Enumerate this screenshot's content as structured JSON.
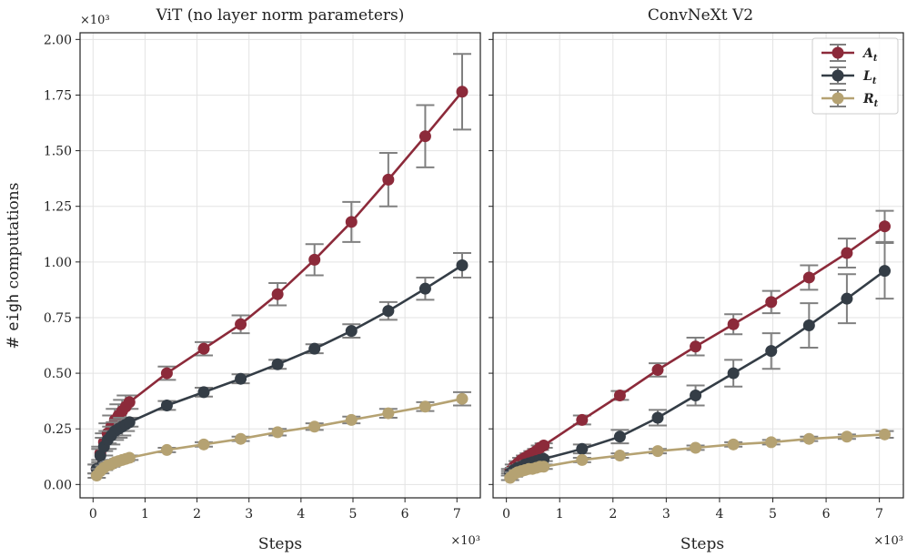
{
  "chart_data": [
    {
      "type": "line",
      "title": "ViT (no layer norm parameters)",
      "xlabel": "Steps",
      "ylabel_prefix": "# ",
      "ylabel_code": "eigh",
      "ylabel_suffix": " computations",
      "x_multiplier_label": "×10³",
      "y_multiplier_label": "×10³",
      "xlim": [
        -0.25,
        7.45
      ],
      "ylim": [
        -0.06,
        2.03
      ],
      "xticks": [
        0,
        1,
        2,
        3,
        4,
        5,
        6,
        7
      ],
      "yticks": [
        0.0,
        0.25,
        0.5,
        0.75,
        1.0,
        1.25,
        1.5,
        1.75,
        2.0
      ],
      "yticklabels": [
        "0.00",
        "0.25",
        "0.50",
        "0.75",
        "1.00",
        "1.25",
        "1.50",
        "1.75",
        "2.00"
      ],
      "grid": true,
      "series": [
        {
          "name": "A",
          "color": "#8c2a3a",
          "x": [
            0.07,
            0.14,
            0.21,
            0.28,
            0.35,
            0.42,
            0.49,
            0.56,
            0.63,
            0.7,
            1.42,
            2.13,
            2.84,
            3.55,
            4.26,
            4.97,
            5.68,
            6.39,
            7.1
          ],
          "y": [
            0.07,
            0.14,
            0.19,
            0.23,
            0.26,
            0.29,
            0.31,
            0.33,
            0.35,
            0.37,
            0.5,
            0.61,
            0.72,
            0.855,
            1.01,
            1.18,
            1.37,
            1.565,
            1.765
          ],
          "err": [
            0.02,
            0.03,
            0.04,
            0.045,
            0.05,
            0.05,
            0.05,
            0.05,
            0.05,
            0.03,
            0.03,
            0.03,
            0.04,
            0.05,
            0.07,
            0.09,
            0.12,
            0.14,
            0.17
          ]
        },
        {
          "name": "L",
          "color": "#343d46",
          "x": [
            0.07,
            0.14,
            0.21,
            0.28,
            0.35,
            0.42,
            0.49,
            0.56,
            0.63,
            0.7,
            1.42,
            2.13,
            2.84,
            3.55,
            4.26,
            4.97,
            5.68,
            6.39,
            7.1
          ],
          "y": [
            0.07,
            0.13,
            0.17,
            0.2,
            0.22,
            0.24,
            0.25,
            0.26,
            0.27,
            0.28,
            0.355,
            0.415,
            0.475,
            0.54,
            0.61,
            0.69,
            0.78,
            0.88,
            0.985
          ],
          "err": [
            0.02,
            0.03,
            0.04,
            0.04,
            0.04,
            0.04,
            0.04,
            0.04,
            0.03,
            0.02,
            0.02,
            0.02,
            0.02,
            0.02,
            0.02,
            0.03,
            0.04,
            0.05,
            0.055
          ]
        },
        {
          "name": "R",
          "color": "#b5a272",
          "x": [
            0.07,
            0.14,
            0.21,
            0.28,
            0.35,
            0.42,
            0.49,
            0.56,
            0.63,
            0.7,
            1.42,
            2.13,
            2.84,
            3.55,
            4.26,
            4.97,
            5.68,
            6.39,
            7.1
          ],
          "y": [
            0.04,
            0.06,
            0.075,
            0.085,
            0.09,
            0.1,
            0.105,
            0.11,
            0.115,
            0.12,
            0.155,
            0.18,
            0.205,
            0.235,
            0.26,
            0.29,
            0.32,
            0.35,
            0.385
          ],
          "err": [
            0.01,
            0.01,
            0.01,
            0.01,
            0.01,
            0.01,
            0.01,
            0.01,
            0.01,
            0.01,
            0.01,
            0.01,
            0.01,
            0.015,
            0.015,
            0.015,
            0.02,
            0.02,
            0.03
          ]
        }
      ]
    },
    {
      "type": "line",
      "title": "ConvNeXt V2",
      "xlabel": "Steps",
      "x_multiplier_label": "×10³",
      "xlim": [
        -0.25,
        7.45
      ],
      "ylim": [
        -0.06,
        2.03
      ],
      "xticks": [
        0,
        1,
        2,
        3,
        4,
        5,
        6,
        7
      ],
      "yticks": [
        0.0,
        0.25,
        0.5,
        0.75,
        1.0,
        1.25,
        1.5,
        1.75,
        2.0
      ],
      "grid": true,
      "legend": {
        "placement": "top-right",
        "entries": [
          {
            "name": "A",
            "label": "A",
            "subscript": "t",
            "color": "#8c2a3a"
          },
          {
            "name": "L",
            "label": "L",
            "subscript": "t",
            "color": "#343d46"
          },
          {
            "name": "R",
            "label": "R",
            "subscript": "t",
            "color": "#b5a272"
          }
        ]
      },
      "series": [
        {
          "name": "A",
          "color": "#8c2a3a",
          "x": [
            0.07,
            0.14,
            0.21,
            0.28,
            0.35,
            0.42,
            0.49,
            0.56,
            0.63,
            0.7,
            1.42,
            2.13,
            2.84,
            3.55,
            4.26,
            4.97,
            5.68,
            6.39,
            7.1
          ],
          "y": [
            0.06,
            0.08,
            0.095,
            0.11,
            0.12,
            0.13,
            0.14,
            0.15,
            0.165,
            0.175,
            0.29,
            0.4,
            0.515,
            0.62,
            0.72,
            0.82,
            0.93,
            1.04,
            1.16
          ],
          "err": [
            0.01,
            0.01,
            0.01,
            0.01,
            0.01,
            0.01,
            0.01,
            0.01,
            0.01,
            0.01,
            0.02,
            0.02,
            0.03,
            0.04,
            0.045,
            0.05,
            0.055,
            0.065,
            0.07
          ]
        },
        {
          "name": "L",
          "color": "#343d46",
          "x": [
            0.07,
            0.14,
            0.21,
            0.28,
            0.35,
            0.42,
            0.49,
            0.56,
            0.63,
            0.7,
            1.42,
            2.13,
            2.84,
            3.55,
            4.26,
            4.97,
            5.68,
            6.39,
            7.1
          ],
          "y": [
            0.05,
            0.065,
            0.075,
            0.08,
            0.09,
            0.095,
            0.1,
            0.105,
            0.11,
            0.115,
            0.16,
            0.215,
            0.3,
            0.4,
            0.5,
            0.6,
            0.715,
            0.835,
            0.96
          ],
          "err": [
            0.01,
            0.01,
            0.01,
            0.01,
            0.01,
            0.01,
            0.01,
            0.01,
            0.01,
            0.01,
            0.02,
            0.03,
            0.035,
            0.045,
            0.06,
            0.08,
            0.1,
            0.11,
            0.125
          ]
        },
        {
          "name": "R",
          "color": "#b5a272",
          "x": [
            0.07,
            0.14,
            0.21,
            0.28,
            0.35,
            0.42,
            0.49,
            0.56,
            0.63,
            0.7,
            1.42,
            2.13,
            2.84,
            3.55,
            4.26,
            4.97,
            5.68,
            6.39,
            7.1
          ],
          "y": [
            0.03,
            0.045,
            0.055,
            0.06,
            0.065,
            0.07,
            0.07,
            0.075,
            0.08,
            0.08,
            0.11,
            0.13,
            0.15,
            0.165,
            0.18,
            0.19,
            0.205,
            0.215,
            0.225
          ],
          "err": [
            0.01,
            0.01,
            0.01,
            0.01,
            0.01,
            0.01,
            0.01,
            0.01,
            0.01,
            0.01,
            0.01,
            0.01,
            0.01,
            0.01,
            0.01,
            0.01,
            0.01,
            0.01,
            0.015
          ]
        }
      ]
    }
  ]
}
